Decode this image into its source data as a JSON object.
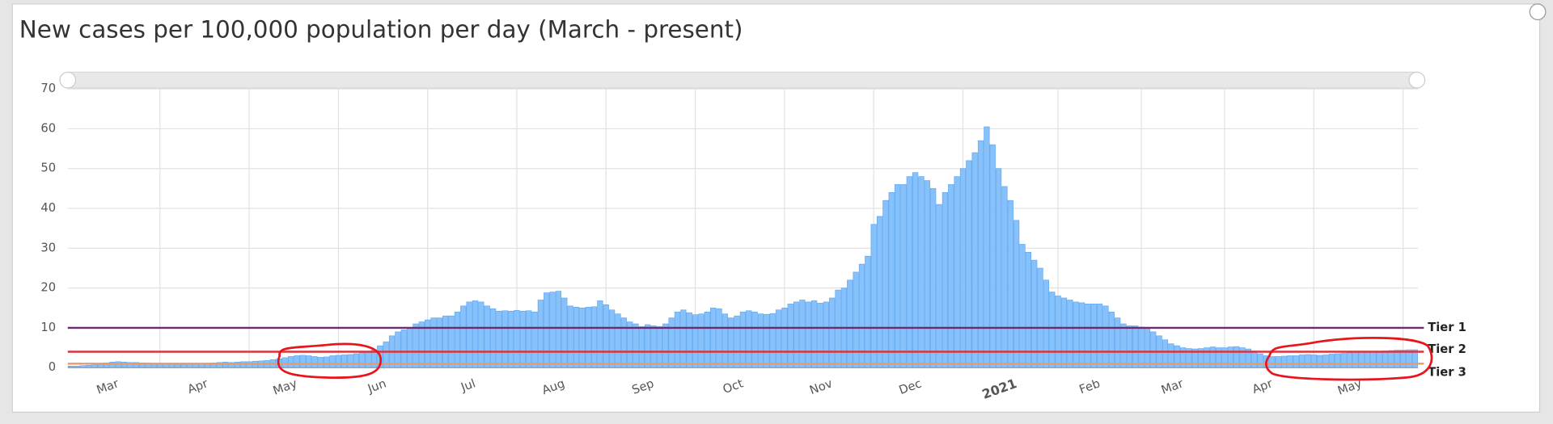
{
  "chart_data": {
    "type": "bar",
    "title": "New cases per 100,000 population per day (March - present)",
    "categories": [
      null,
      null,
      null,
      null,
      null,
      null,
      null,
      null,
      "Mar",
      null,
      null,
      null,
      null,
      null,
      null,
      null,
      null,
      null,
      null,
      null,
      null,
      null,
      null,
      "Apr",
      null,
      null,
      null,
      null,
      null,
      null,
      null,
      null,
      null,
      null,
      null,
      null,
      null,
      null,
      "May",
      null,
      null,
      null,
      null,
      null,
      null,
      null,
      null,
      null,
      null,
      null,
      null,
      null,
      null,
      "Jun",
      null,
      null,
      null,
      null,
      null,
      null,
      null,
      null,
      null,
      null,
      null,
      null,
      null,
      null,
      "Jul",
      null,
      null,
      null,
      null,
      null,
      null,
      null,
      null,
      null,
      null,
      null,
      null,
      null,
      null,
      "Aug",
      null,
      null,
      null,
      null,
      null,
      null,
      null,
      null,
      null,
      null,
      null,
      null,
      null,
      null,
      "Sep",
      null,
      null,
      null,
      null,
      null,
      null,
      null,
      null,
      null,
      null,
      null,
      null,
      null,
      null,
      "Oct",
      null,
      null,
      null,
      null,
      null,
      null,
      null,
      null,
      null,
      null,
      null,
      null,
      null,
      null,
      "Nov",
      null,
      null,
      null,
      null,
      null,
      null,
      null,
      null,
      null,
      null,
      null,
      null,
      null,
      null,
      "Dec",
      null,
      null,
      null,
      null,
      null,
      null,
      null,
      null,
      null,
      null,
      null,
      null,
      null,
      null,
      null,
      "2021",
      null,
      null,
      null,
      null,
      null,
      null,
      null,
      null,
      null,
      null,
      null,
      null,
      null,
      "Feb",
      null,
      null,
      null,
      null,
      null,
      null,
      null,
      null,
      null,
      null,
      null,
      null,
      null,
      "Mar",
      null,
      null,
      null,
      null,
      null,
      null,
      null,
      null,
      null,
      null,
      null,
      null,
      null,
      null,
      "Apr",
      null,
      null,
      null,
      null,
      null,
      null,
      null,
      null,
      null,
      null,
      null,
      null,
      null,
      null,
      "May",
      null,
      null,
      null,
      null,
      null,
      null,
      null,
      null,
      null
    ],
    "values": [
      0.4,
      0.4,
      0.5,
      0.6,
      0.8,
      1,
      1.2,
      1.4,
      1.5,
      1.4,
      1.3,
      1.3,
      1.2,
      1.2,
      1.1,
      1,
      0.9,
      0.9,
      0.8,
      0.8,
      0.9,
      1,
      1,
      1.1,
      1.2,
      1.3,
      1.4,
      1.3,
      1.4,
      1.5,
      1.5,
      1.6,
      1.7,
      1.8,
      2,
      2.2,
      2.5,
      2.8,
      3,
      3.1,
      3,
      2.8,
      2.6,
      2.7,
      3,
      3.1,
      3.2,
      3.3,
      3.5,
      3.8,
      4,
      4.5,
      5.5,
      6.5,
      8,
      9,
      9.5,
      10,
      11,
      11.5,
      12,
      12.5,
      12.5,
      13,
      13,
      14,
      15.5,
      16.5,
      16.8,
      16.5,
      15.5,
      14.8,
      14.2,
      14.3,
      14.2,
      14.4,
      14.2,
      14.3,
      14,
      17,
      18.8,
      19,
      19.2,
      17.5,
      15.5,
      15.2,
      15,
      15.2,
      15.3,
      16.8,
      15.8,
      14.5,
      13.5,
      12.5,
      11.5,
      11,
      10.3,
      10.8,
      10.5,
      10.3,
      11,
      12.5,
      14,
      14.5,
      13.8,
      13.3,
      13.5,
      14,
      15,
      14.8,
      13.5,
      12.5,
      13,
      14,
      14.3,
      14,
      13.5,
      13.4,
      13.6,
      14.5,
      15,
      16,
      16.5,
      17,
      16.5,
      16.8,
      16.2,
      16.5,
      17.5,
      19.5,
      20,
      22,
      24,
      26,
      28,
      36,
      38,
      42,
      44,
      46,
      46,
      48,
      49,
      48,
      47,
      45,
      41,
      44,
      46,
      48,
      50,
      52,
      54,
      57,
      60.5,
      56,
      50,
      45.5,
      42,
      37,
      31,
      29,
      27,
      25,
      22,
      19,
      18,
      17.5,
      17,
      16.5,
      16.3,
      16,
      16,
      16,
      15.5,
      14,
      12.5,
      11,
      10.5,
      10.5,
      10.2,
      10,
      9,
      8,
      7,
      6,
      5.5,
      5,
      4.8,
      4.7,
      4.8,
      5,
      5.2,
      5,
      5,
      5.2,
      5.3,
      5,
      4.7,
      4.2,
      3.5,
      3,
      2.8,
      2.8,
      2.9,
      3,
      3,
      3.2,
      3.3,
      3.2,
      3.1,
      3.2,
      3.4,
      3.5,
      3.6,
      3.8,
      4,
      3.9,
      4,
      4.1,
      4,
      4.2,
      4.3,
      4.4,
      4.4,
      4.5,
      4.5
    ],
    "color": "#86c1fb",
    "ylim": [
      0,
      70
    ],
    "yticks": [
      0,
      10,
      20,
      30,
      40,
      50,
      60,
      70
    ],
    "grid": true,
    "reference_lines": [
      {
        "label": "Tier 1",
        "value": 10,
        "color": "#6e2a6e"
      },
      {
        "label": "Tier 2",
        "value": 4,
        "color": "#d9343a"
      },
      {
        "label": "Tier 3",
        "value": 1,
        "color": "#e79a6a"
      }
    ]
  }
}
